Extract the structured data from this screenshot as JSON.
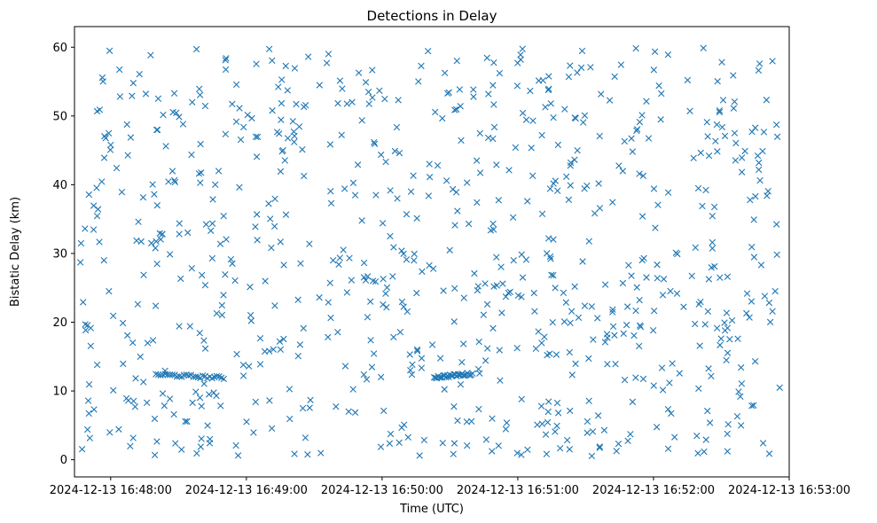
{
  "chart_data": {
    "type": "scatter",
    "title": "Detections in Delay",
    "xlabel": "Time (UTC)",
    "ylabel": "Bistatic Delay (km)",
    "marker": "x",
    "color": "#1f77b4",
    "grid": false,
    "legend": "none",
    "x_range": [
      "2024-12-13 16:47:44",
      "2024-12-13 16:53:00"
    ],
    "ylim": [
      -2.5,
      63
    ],
    "x_ticks": [
      "2024-12-13 16:48:00",
      "2024-12-13 16:49:00",
      "2024-12-13 16:50:00",
      "2024-12-13 16:51:00",
      "2024-12-13 16:52:00",
      "2024-12-13 16:53:00"
    ],
    "y_ticks": [
      0,
      10,
      20,
      30,
      40,
      50,
      60
    ],
    "series": [
      {
        "points_time_start": "2024-12-13 16:47:46",
        "points_time_end": "2024-12-13 16:52:56",
        "random_detection_count": 800,
        "random_delay_range": [
          0.5,
          60
        ],
        "tracks": [
          {
            "start": "2024-12-13 16:48:20",
            "end": "2024-12-13 16:48:50",
            "delay_start": 12.4,
            "delay_end": 11.9,
            "count": 30
          },
          {
            "start": "2024-12-13 16:50:23",
            "end": "2024-12-13 16:50:40",
            "delay_start": 12.0,
            "delay_end": 12.5,
            "count": 30
          }
        ]
      }
    ]
  }
}
